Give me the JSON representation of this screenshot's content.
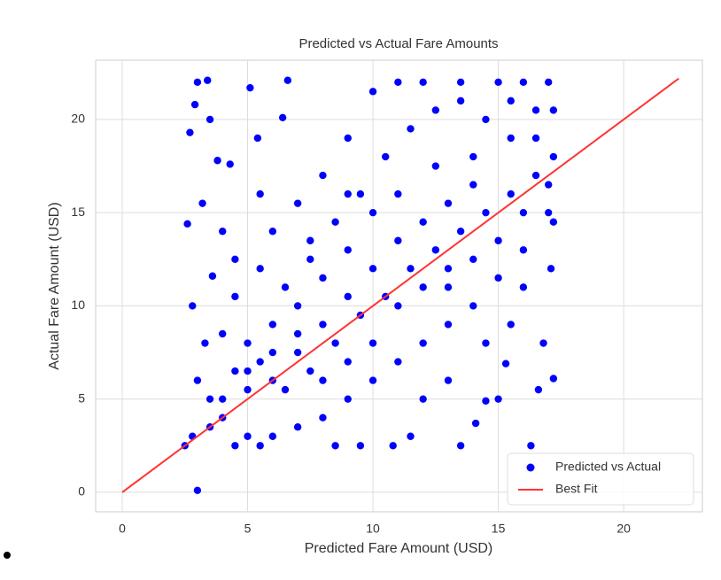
{
  "chart_data": {
    "type": "scatter",
    "title": "Predicted vs Actual Fare Amounts",
    "xlabel": "Predicted Fare Amount (USD)",
    "ylabel": "Actual Fare Amount (USD)",
    "xlim": [
      -1.06,
      23.14
    ],
    "ylim": [
      -1.05,
      23.18
    ],
    "xticks": [
      0,
      5,
      10,
      15,
      20
    ],
    "yticks": [
      0,
      5,
      10,
      15,
      20
    ],
    "grid": true,
    "legend": "lower right",
    "series": [
      {
        "name": "Predicted vs Actual",
        "color": "#0000ff",
        "type": "scatter",
        "x": [
          2.5,
          2.8,
          3.0,
          3.0,
          3.4,
          2.7,
          2.9,
          3.5,
          3.2,
          2.6,
          3.8,
          4.3,
          5.1,
          6.6,
          6.4,
          5.4,
          5.5,
          4.0,
          3.6,
          2.8,
          3.3,
          3.0,
          3.5,
          4.0,
          4.5,
          5.0,
          4.5,
          5.5,
          6.0,
          7.0,
          8.0,
          9.0,
          10.0,
          11.0,
          12.0,
          13.5,
          15.0,
          16.0,
          17.0,
          16.5,
          15.5,
          14.0,
          12.5,
          11.0,
          10.0,
          9.0,
          8.0,
          7.0,
          6.0,
          5.5,
          6.5,
          7.5,
          8.5,
          9.5,
          10.5,
          11.5,
          12.5,
          13.5,
          14.5,
          15.5,
          16.5,
          17.2,
          17.0,
          16.0,
          15.0,
          14.0,
          13.0,
          12.0,
          11.0,
          10.0,
          9.0,
          8.0,
          7.0,
          6.0,
          5.5,
          5.0,
          4.5,
          8.5,
          9.5,
          10.8,
          13.5,
          16.3,
          15.0,
          14.5,
          16.6,
          17.2,
          15.3,
          13.0,
          12.0,
          14.1,
          11.5,
          16.8,
          17.1,
          17.2,
          16.0,
          15.5,
          14.5,
          13.0,
          12.0,
          11.0,
          10.0,
          9.0,
          8.0,
          7.0,
          6.0,
          5.0,
          4.0,
          3.5,
          4.0,
          4.5,
          7.5,
          8.5,
          9.5,
          10.5,
          11.5,
          12.5,
          13.5,
          14.5,
          15.5,
          16.5,
          17.2,
          14.0,
          13.0,
          12.0,
          11.0,
          10.0,
          9.0,
          8.0,
          7.0,
          6.0,
          5.0,
          6.5,
          7.5,
          9.0,
          16.0,
          17.0,
          15.0,
          14.0,
          13.0
        ],
        "values": [
          2.5,
          3.0,
          0.1,
          22.0,
          22.1,
          19.3,
          20.8,
          20.0,
          15.5,
          14.4,
          17.8,
          17.6,
          21.7,
          22.1,
          20.1,
          19.0,
          16.0,
          14.0,
          11.6,
          10.0,
          8.0,
          6.0,
          5.0,
          4.0,
          6.5,
          8.0,
          10.5,
          12.0,
          14.0,
          15.5,
          17.0,
          19.0,
          21.5,
          22.0,
          22.0,
          22.0,
          22.0,
          22.0,
          22.0,
          20.5,
          19.0,
          18.0,
          17.5,
          16.0,
          15.0,
          13.0,
          11.5,
          10.0,
          9.0,
          7.0,
          5.5,
          6.5,
          8.0,
          9.5,
          10.5,
          12.0,
          13.0,
          14.0,
          15.0,
          16.0,
          17.0,
          18.0,
          15.0,
          13.0,
          11.5,
          10.0,
          9.0,
          8.0,
          7.0,
          6.0,
          5.0,
          4.0,
          3.5,
          3.0,
          2.5,
          3.0,
          2.5,
          2.5,
          2.5,
          2.5,
          2.5,
          2.5,
          5.0,
          4.9,
          5.5,
          6.1,
          6.9,
          6.0,
          5.0,
          3.7,
          3.0,
          8.0,
          12.0,
          14.5,
          11.0,
          9.0,
          8.0,
          11.0,
          11.0,
          10.0,
          8.0,
          7.0,
          6.0,
          7.5,
          6.0,
          5.5,
          5.0,
          3.5,
          8.5,
          12.5,
          12.5,
          14.5,
          16.0,
          18.0,
          19.5,
          20.5,
          21.0,
          20.0,
          21.0,
          19.0,
          20.5,
          16.5,
          15.5,
          14.5,
          13.5,
          12.0,
          10.5,
          9.0,
          8.5,
          7.5,
          6.5,
          11.0,
          13.5,
          16.0,
          15.0,
          16.5,
          13.5,
          12.5,
          12.0
        ]
      },
      {
        "name": "Best Fit",
        "color": "#ff3333",
        "type": "line",
        "x": [
          0,
          22.2
        ],
        "values": [
          0,
          22.2
        ]
      }
    ]
  }
}
